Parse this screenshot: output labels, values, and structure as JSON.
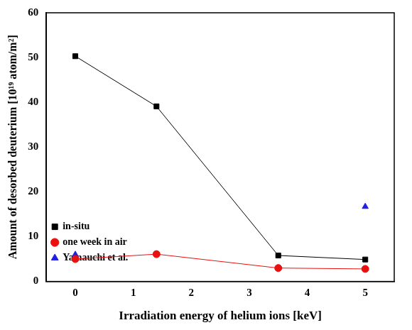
{
  "chart_data": {
    "type": "line",
    "x_label": "Irradiation energy of helium ions [keV]",
    "y_label": "Amount of desorbed deuterium [10¹⁹ atom/m²]",
    "x": [
      0,
      1.4,
      3.5,
      5
    ],
    "series": [
      {
        "name": "in-situ",
        "color": "#000000",
        "marker": "square",
        "line_style": "solid",
        "values": [
          50.3,
          39.1,
          5.8,
          4.9
        ]
      },
      {
        "name": "one week in air",
        "color": "#e8110f",
        "marker": "circle",
        "line_style": "solid",
        "values": [
          5.0,
          6.1,
          3.0,
          2.8
        ]
      },
      {
        "name": "Yamauchi et al.",
        "color": "#1f1fe6",
        "marker": "triangle",
        "line_style": "none",
        "values": [
          6.0,
          null,
          null,
          16.7
        ]
      }
    ],
    "xlim": [
      -0.5,
      5.5
    ],
    "xticks": [
      0,
      1,
      2,
      3,
      4,
      5
    ],
    "ylim": [
      0,
      60
    ],
    "yticks": [
      0,
      10,
      20,
      30,
      40,
      50,
      60
    ],
    "grid": false,
    "legend": "top-right"
  }
}
